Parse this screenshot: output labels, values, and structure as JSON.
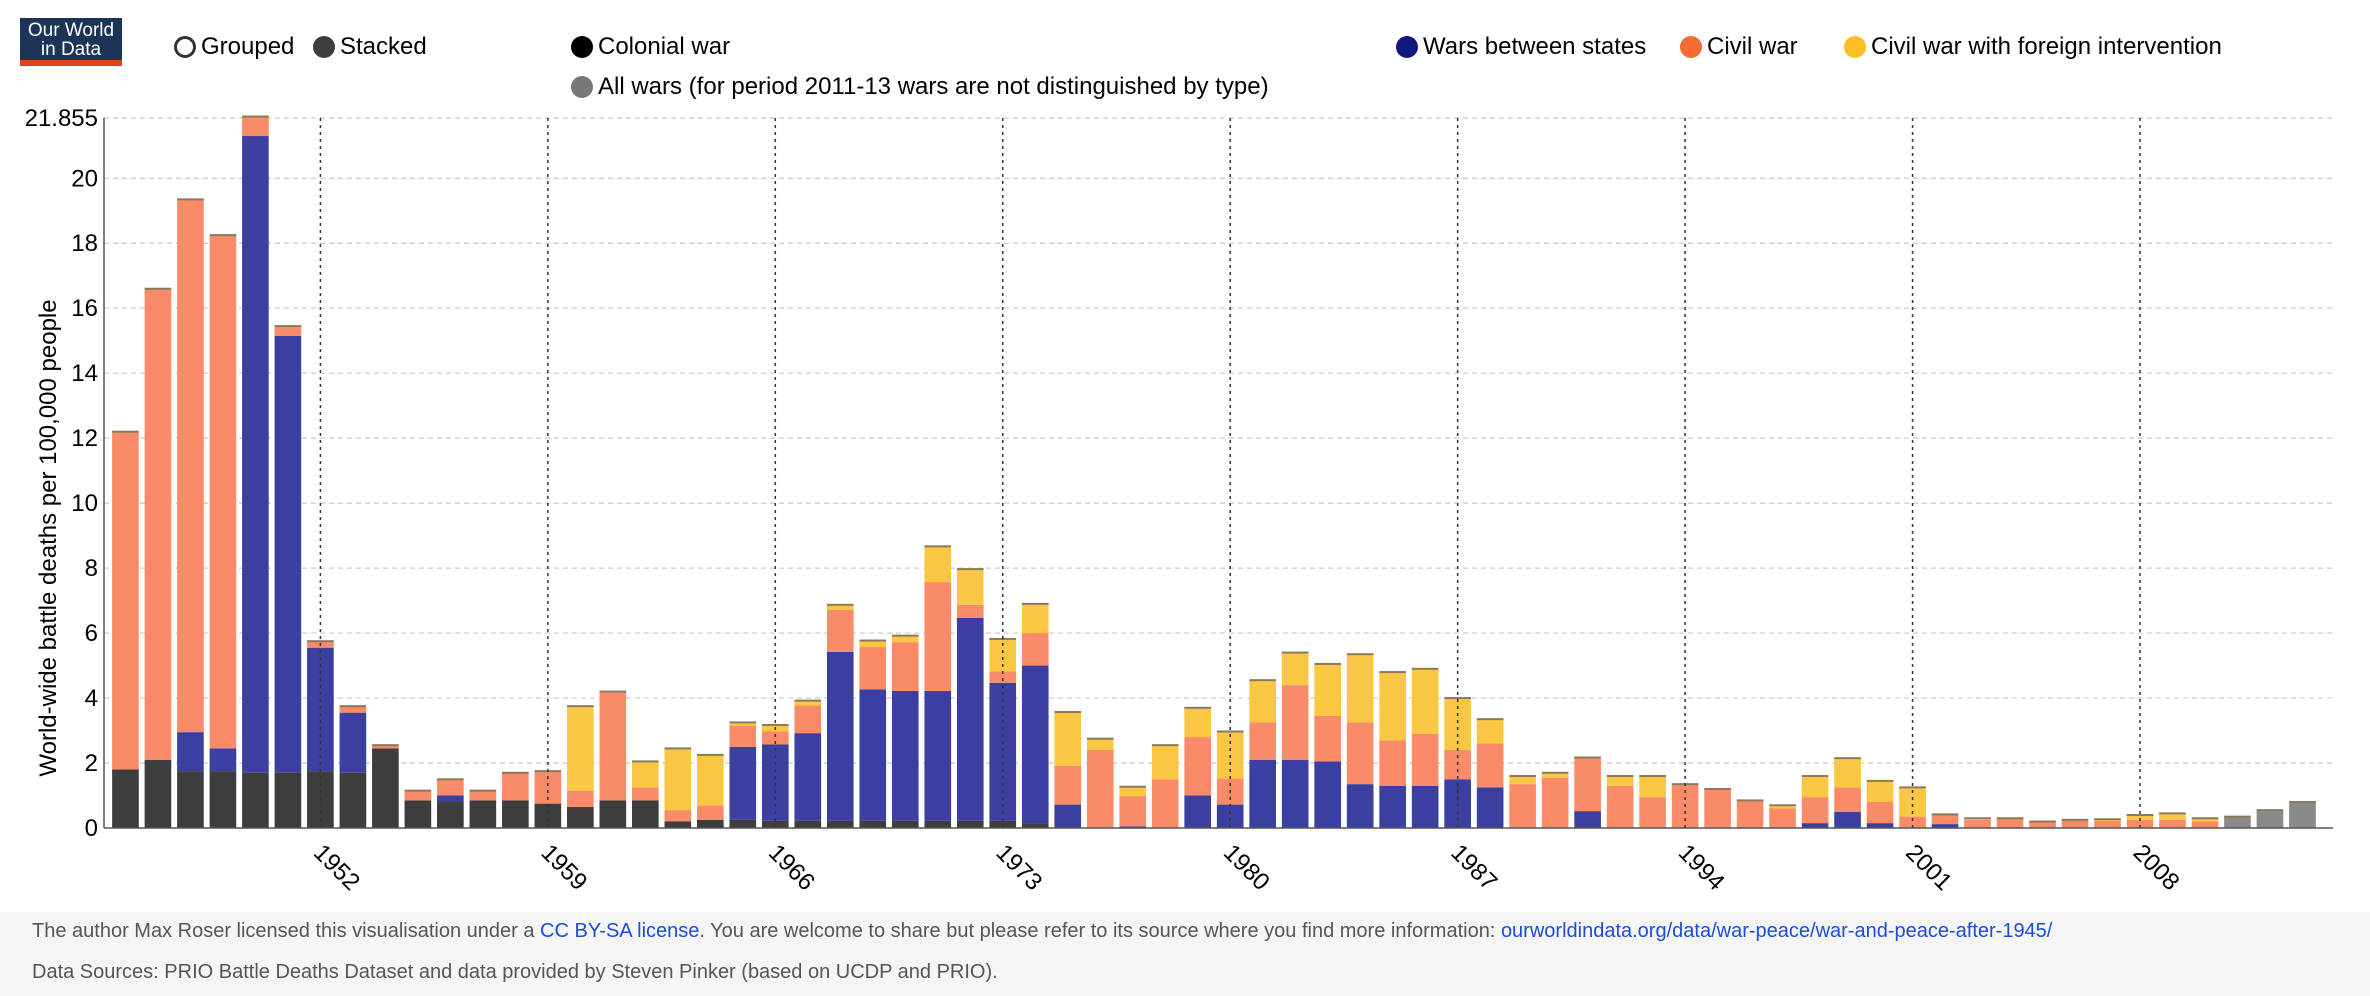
{
  "logo": {
    "line1": "Our World",
    "line2": "in Data"
  },
  "mode_toggle": {
    "grouped_label": "Grouped",
    "stacked_label": "Stacked",
    "selected": "Stacked"
  },
  "footer": {
    "license_prefix": "The author Max Roser licensed this visualisation under a ",
    "license_link": "CC BY-SA license",
    "license_suffix": ". You are welcome to share but please refer to its source where you  find more information: ",
    "source_link": "ourworldindata.org/data/war-peace/war-and-peace-after-1945/",
    "data_sources": "Data Sources: PRIO Battle Deaths Dataset and data provided by Steven Pinker (based on UCDP and PRIO)."
  },
  "chart_data": {
    "type": "bar",
    "stacked": true,
    "title": "",
    "xlabel": "",
    "ylabel": "World-wide battle deaths per 100,000 people",
    "ylim": [
      0,
      21.855
    ],
    "y_ticks": [
      "0",
      "2",
      "4",
      "6",
      "8",
      "10",
      "12",
      "14",
      "16",
      "18",
      "20",
      "21.855"
    ],
    "x_tick_labels": [
      "1952",
      "1959",
      "1966",
      "1973",
      "1980",
      "1987",
      "1994",
      "2001",
      "2008"
    ],
    "grid": true,
    "legend_position": "top",
    "categories": [
      1946,
      1947,
      1948,
      1949,
      1950,
      1951,
      1952,
      1953,
      1954,
      1955,
      1956,
      1957,
      1958,
      1959,
      1960,
      1961,
      1962,
      1963,
      1964,
      1965,
      1966,
      1967,
      1968,
      1969,
      1970,
      1971,
      1972,
      1973,
      1974,
      1975,
      1976,
      1977,
      1978,
      1979,
      1980,
      1981,
      1982,
      1983,
      1984,
      1985,
      1986,
      1987,
      1988,
      1989,
      1990,
      1991,
      1992,
      1993,
      1994,
      1995,
      1996,
      1997,
      1998,
      1999,
      2000,
      2001,
      2002,
      2003,
      2004,
      2005,
      2006,
      2007,
      2008,
      2009,
      2010,
      2011,
      2012,
      2013
    ],
    "series": [
      {
        "name": "Colonial war",
        "color": "#3d3d3d",
        "values": [
          1.8,
          2.1,
          1.75,
          1.75,
          1.7,
          1.7,
          1.75,
          1.7,
          2.45,
          0.85,
          0.8,
          0.85,
          0.85,
          0.75,
          0.65,
          0.85,
          0.85,
          0.2,
          0.25,
          0.25,
          0.22,
          0.22,
          0.22,
          0.22,
          0.22,
          0.22,
          0.22,
          0.22,
          0.15,
          0,
          0,
          0,
          0,
          0,
          0,
          0,
          0,
          0,
          0,
          0,
          0,
          0,
          0,
          0,
          0,
          0,
          0,
          0,
          0,
          0,
          0,
          0,
          0,
          0,
          0,
          0,
          0,
          0,
          0,
          0,
          0,
          0,
          0,
          0,
          0,
          0,
          0,
          0
        ]
      },
      {
        "name": "Wars between states",
        "color": "#3b3fa0",
        "values": [
          0,
          0,
          1.2,
          0.7,
          19.6,
          13.45,
          3.8,
          1.85,
          0,
          0,
          0.2,
          0,
          0,
          0,
          0,
          0,
          0,
          0,
          0,
          2.25,
          2.35,
          2.7,
          5.2,
          4.05,
          4.0,
          4.0,
          6.25,
          4.25,
          4.85,
          0.72,
          0,
          0.05,
          0,
          1.0,
          0.72,
          2.1,
          2.1,
          2.05,
          1.35,
          1.3,
          1.3,
          1.5,
          1.25,
          0,
          0,
          0.52,
          0,
          0,
          0,
          0,
          0,
          0,
          0.15,
          0.5,
          0.15,
          0,
          0.12,
          0,
          0,
          0,
          0,
          0,
          0,
          0,
          0,
          0,
          0,
          0
        ]
      },
      {
        "name": "Civil war",
        "color": "#f98b68",
        "values": [
          10.4,
          14.5,
          16.4,
          15.8,
          0.6,
          0.3,
          0.2,
          0.2,
          0.1,
          0.3,
          0.5,
          0.3,
          0.85,
          1.0,
          0.5,
          3.35,
          0.4,
          0.35,
          0.45,
          0.65,
          0.4,
          0.85,
          1.3,
          1.3,
          1.5,
          3.35,
          0.4,
          0.35,
          1.0,
          1.2,
          2.4,
          0.92,
          1.5,
          1.8,
          0.8,
          1.15,
          2.3,
          1.4,
          1.9,
          1.4,
          1.6,
          0.9,
          1.35,
          1.35,
          1.55,
          1.65,
          1.3,
          0.95,
          1.35,
          1.2,
          0.85,
          0.6,
          0.8,
          0.75,
          0.65,
          0.35,
          0.3,
          0.25,
          0.3,
          0.2,
          0.25,
          0.22,
          0.25,
          0.25,
          0.2,
          0,
          0,
          0
        ]
      },
      {
        "name": "Civil war with foreign intervention",
        "color": "#f9c744",
        "values": [
          0,
          0,
          0,
          0,
          0,
          0,
          0,
          0,
          0,
          0,
          0,
          0,
          0,
          0,
          2.6,
          0,
          0.8,
          1.9,
          1.55,
          0.1,
          0.2,
          0.15,
          0.15,
          0.2,
          0.2,
          1.1,
          1.1,
          1.0,
          0.9,
          1.65,
          0.35,
          0.3,
          1.05,
          0.9,
          1.45,
          1.3,
          1.0,
          1.6,
          2.1,
          2.1,
          2.0,
          1.6,
          0.75,
          0.25,
          0.15,
          0,
          0.3,
          0.65,
          0,
          0,
          0,
          0.1,
          0.65,
          0.9,
          0.65,
          0.9,
          0,
          0.05,
          0,
          0,
          0,
          0.05,
          0.15,
          0.2,
          0.1,
          0,
          0,
          0
        ]
      },
      {
        "name": "All wars (for period 2011-13 wars are not distinguished by type)",
        "color": "#8a8a8a",
        "values": [
          0,
          0,
          0,
          0,
          0,
          0,
          0,
          0,
          0,
          0,
          0,
          0,
          0,
          0,
          0,
          0,
          0,
          0,
          0,
          0,
          0,
          0,
          0,
          0,
          0,
          0,
          0,
          0,
          0,
          0,
          0,
          0,
          0,
          0,
          0,
          0,
          0,
          0,
          0,
          0,
          0,
          0,
          0,
          0,
          0,
          0,
          0,
          0,
          0,
          0,
          0,
          0,
          0,
          0,
          0,
          0,
          0,
          0,
          0,
          0,
          0,
          0,
          0,
          0,
          0,
          0.35,
          0.55,
          0.8
        ]
      }
    ]
  }
}
